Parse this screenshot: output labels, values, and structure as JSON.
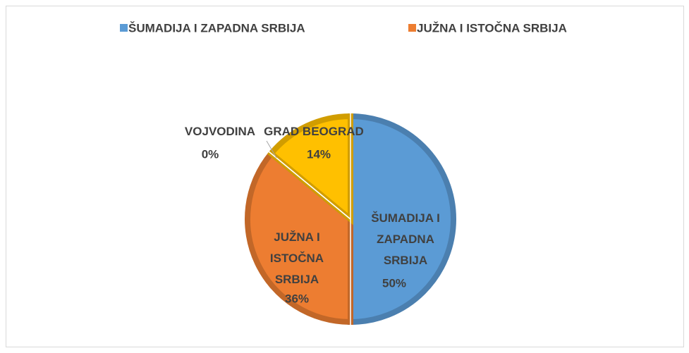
{
  "chart_data": {
    "type": "pie",
    "categories": [
      "ŠUMADIJA I ZAPADNA SRBIJA",
      "JUŽNA I ISTOČNA SRBIJA",
      "VOJVODINA",
      "GRAD BEOGRAD"
    ],
    "values": [
      50,
      36,
      0,
      14
    ],
    "value_labels": [
      "50%",
      "36%",
      "0%",
      "14%"
    ],
    "colors": [
      "#5b9bd5",
      "#ed7d31",
      "#a5a5a5",
      "#ffc000"
    ],
    "legend": "top"
  }
}
